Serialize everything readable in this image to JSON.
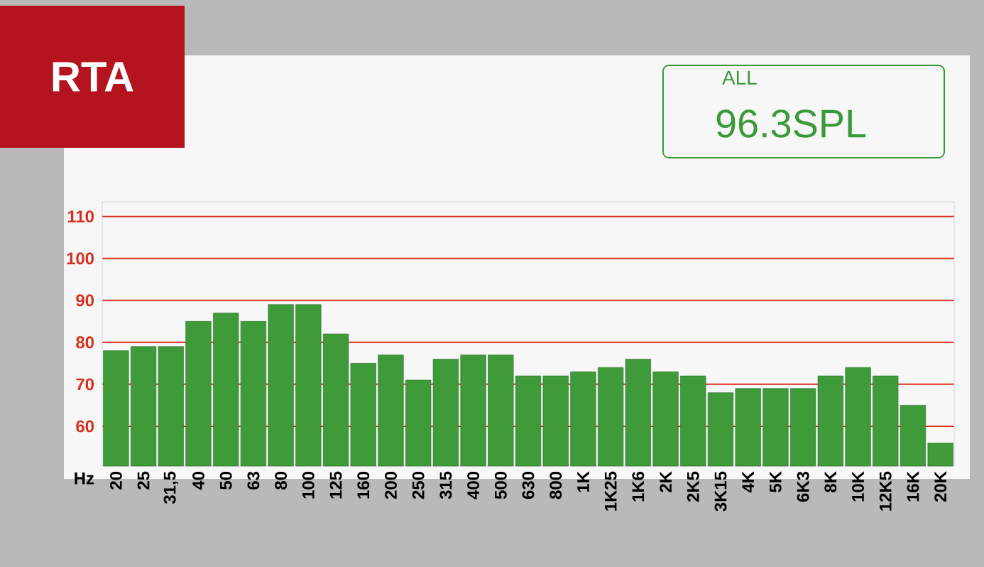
{
  "chart_data": {
    "type": "bar",
    "categories": [
      "20",
      "25",
      "31,5",
      "40",
      "50",
      "63",
      "80",
      "100",
      "125",
      "160",
      "200",
      "250",
      "315",
      "400",
      "500",
      "630",
      "800",
      "1K",
      "1K25",
      "1K6",
      "2K",
      "2K5",
      "3K15",
      "4K",
      "5K",
      "6K3",
      "8K",
      "10K",
      "12K5",
      "16K",
      "20K"
    ],
    "values": [
      78,
      79,
      79,
      85,
      87,
      85,
      89,
      89,
      82,
      75,
      77,
      71,
      76,
      77,
      77,
      72,
      72,
      73,
      74,
      76,
      73,
      72,
      68,
      69,
      69,
      69,
      72,
      74,
      72,
      65,
      56
    ],
    "color": "#3f9a3a",
    "xlabel": "Hz",
    "ylim": [
      50.5,
      113.5
    ],
    "yticks": [
      60,
      70,
      80,
      90,
      100,
      110
    ],
    "grid": "y",
    "annotations": [
      "RTA",
      "ALL",
      "96.3SPL"
    ]
  }
}
